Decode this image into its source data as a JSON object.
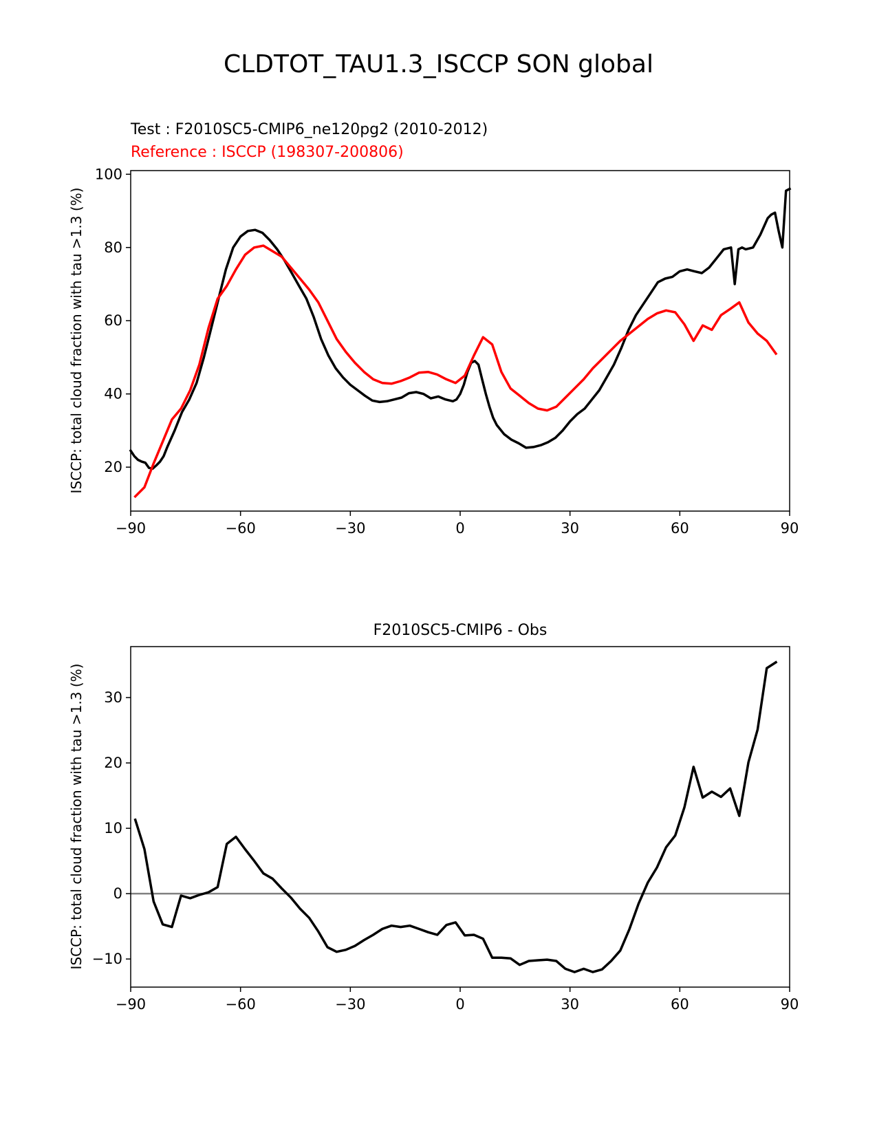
{
  "figure_title": "CLDTOT_TAU1.3_ISCCP SON global",
  "chart_data": [
    {
      "type": "line",
      "test_label": "Test : F2010SC5-CMIP6_ne120pg2 (2010-2012)",
      "reference_label": "Reference : ISCCP (198307-200806)",
      "ylabel": "ISCCP: total cloud fraction with tau >1.3 (%)",
      "xlim": [
        -90,
        90
      ],
      "ylim": [
        8,
        101
      ],
      "xticks": [
        -90,
        -60,
        -30,
        0,
        30,
        60,
        90
      ],
      "xtick_labels": [
        "−90",
        "−60",
        "−30",
        "0",
        "30",
        "60",
        "90"
      ],
      "yticks": [
        20,
        40,
        60,
        80,
        100
      ],
      "ytick_labels": [
        "20",
        "40",
        "60",
        "80",
        "100"
      ],
      "series": [
        {
          "name": "Test",
          "color": "#000000",
          "x": [
            -90,
            -89,
            -88,
            -87,
            -86,
            -85,
            -84,
            -83,
            -82,
            -81,
            -80,
            -78,
            -76,
            -74,
            -72,
            -70,
            -68,
            -66,
            -64,
            -62,
            -60,
            -58,
            -56,
            -54,
            -52,
            -50,
            -48,
            -46,
            -44,
            -42,
            -40,
            -38,
            -36,
            -34,
            -32,
            -30,
            -28,
            -26,
            -24,
            -22,
            -20,
            -18,
            -16,
            -14,
            -12,
            -10,
            -8,
            -6,
            -4,
            -2,
            -1,
            0,
            1,
            2,
            3,
            4,
            5,
            6,
            7,
            8,
            9,
            10,
            12,
            14,
            16,
            18,
            20,
            22,
            24,
            26,
            28,
            30,
            32,
            34,
            36,
            38,
            40,
            42,
            44,
            46,
            48,
            50,
            52,
            54,
            56,
            58,
            60,
            62,
            64,
            66,
            68,
            70,
            72,
            74,
            75,
            76,
            77,
            78,
            80,
            82,
            84,
            85,
            86,
            87,
            88,
            89,
            90
          ],
          "values": [
            24.5,
            23.0,
            22.0,
            21.5,
            21.2,
            19.8,
            19.6,
            20.5,
            21.5,
            23.0,
            25.5,
            30.0,
            35.0,
            38.5,
            43.0,
            50.0,
            58.0,
            66.0,
            74.0,
            80.0,
            83.0,
            84.5,
            84.8,
            84.0,
            82.0,
            79.5,
            76.5,
            73.0,
            69.5,
            66.0,
            61.0,
            55.0,
            50.5,
            47.0,
            44.5,
            42.5,
            41.0,
            39.5,
            38.2,
            37.8,
            38.0,
            38.5,
            39.0,
            40.2,
            40.5,
            40.0,
            38.8,
            39.3,
            38.5,
            38.0,
            38.5,
            40.0,
            42.5,
            46.0,
            48.5,
            49.0,
            48.0,
            44.0,
            40.0,
            36.5,
            33.5,
            31.5,
            29.0,
            27.5,
            26.5,
            25.3,
            25.5,
            26.0,
            26.8,
            28.0,
            30.0,
            32.5,
            34.5,
            36.0,
            38.5,
            41.0,
            44.5,
            48.0,
            52.5,
            57.5,
            61.5,
            64.5,
            67.5,
            70.5,
            71.5,
            72.0,
            73.5,
            74.0,
            73.5,
            73.0,
            74.5,
            77.0,
            79.5,
            80.0,
            70.0,
            79.5,
            80.0,
            79.5,
            80.0,
            83.5,
            88.0,
            89.0,
            89.5,
            84.5,
            80.0,
            95.5,
            96.0
          ]
        },
        {
          "name": "Reference",
          "color": "#ff0000",
          "x": [
            -88.75,
            -86.25,
            -83.75,
            -81.25,
            -78.75,
            -76.25,
            -73.75,
            -71.25,
            -68.75,
            -66.25,
            -63.75,
            -61.25,
            -58.75,
            -56.25,
            -53.75,
            -51.25,
            -48.75,
            -46.25,
            -43.75,
            -41.25,
            -38.75,
            -36.25,
            -33.75,
            -31.25,
            -28.75,
            -26.25,
            -23.75,
            -21.25,
            -18.75,
            -16.25,
            -13.75,
            -11.25,
            -8.75,
            -6.25,
            -3.75,
            -1.25,
            1.25,
            3.75,
            6.25,
            8.75,
            11.25,
            13.75,
            16.25,
            18.75,
            21.25,
            23.75,
            26.25,
            28.75,
            31.25,
            33.75,
            36.25,
            38.75,
            41.25,
            43.75,
            46.25,
            48.75,
            51.25,
            53.75,
            56.25,
            58.75,
            61.25,
            63.75,
            66.25,
            68.75,
            71.25,
            73.75,
            76.25,
            78.75,
            81.25,
            83.75,
            86.25
          ],
          "values": [
            12.0,
            14.5,
            21.0,
            27.0,
            33.0,
            36.0,
            41.0,
            48.0,
            58.0,
            66.0,
            69.5,
            74.0,
            78.0,
            80.0,
            80.5,
            79.0,
            77.5,
            74.5,
            71.5,
            68.5,
            65.0,
            60.0,
            55.0,
            51.5,
            48.5,
            46.0,
            44.0,
            43.0,
            42.8,
            43.5,
            44.5,
            45.8,
            46.0,
            45.3,
            44.0,
            43.0,
            45.0,
            50.5,
            55.5,
            53.5,
            46.0,
            41.5,
            39.5,
            37.5,
            36.0,
            35.5,
            36.5,
            39.0,
            41.5,
            44.0,
            47.0,
            49.5,
            52.0,
            54.5,
            56.5,
            58.5,
            60.5,
            62.0,
            62.8,
            62.3,
            59.0,
            54.5,
            58.7,
            57.5,
            61.5,
            63.2,
            65.0,
            59.5,
            56.5,
            54.5,
            51.0
          ]
        }
      ]
    },
    {
      "type": "line",
      "title": "F2010SC5-CMIP6 - Obs",
      "ylabel": "ISCCP: total cloud fraction with tau >1.3 (%)",
      "xlim": [
        -90,
        90
      ],
      "ylim": [
        -14.3,
        37.8
      ],
      "xticks": [
        -90,
        -60,
        -30,
        0,
        30,
        60,
        90
      ],
      "xtick_labels": [
        "−90",
        "−60",
        "−30",
        "0",
        "30",
        "60",
        "90"
      ],
      "yticks": [
        -10,
        0,
        10,
        20,
        30
      ],
      "ytick_labels": [
        "−10",
        "0",
        "10",
        "20",
        "30"
      ],
      "zero_line_color": "#808080",
      "series": [
        {
          "name": "Difference",
          "color": "#000000",
          "x": [
            -88.75,
            -86.25,
            -83.75,
            -81.25,
            -78.75,
            -76.25,
            -73.75,
            -71.25,
            -68.75,
            -66.25,
            -63.75,
            -61.25,
            -58.75,
            -56.25,
            -53.75,
            -51.25,
            -48.75,
            -46.25,
            -43.75,
            -41.25,
            -38.75,
            -36.25,
            -33.75,
            -31.25,
            -28.75,
            -26.25,
            -23.75,
            -21.25,
            -18.75,
            -16.25,
            -13.75,
            -11.25,
            -8.75,
            -6.25,
            -3.75,
            -1.25,
            1.25,
            3.75,
            6.25,
            8.75,
            11.25,
            13.75,
            16.25,
            18.75,
            21.25,
            23.75,
            26.25,
            28.75,
            31.25,
            33.75,
            36.25,
            38.75,
            41.25,
            43.75,
            46.25,
            48.75,
            51.25,
            53.75,
            56.25,
            58.75,
            61.25,
            63.75,
            66.25,
            68.75,
            71.25,
            73.75,
            76.25,
            78.75,
            81.25,
            83.75,
            86.25
          ],
          "values": [
            11.3,
            6.8,
            -1.2,
            -4.7,
            -5.1,
            -0.3,
            -0.7,
            -0.2,
            0.2,
            1.0,
            7.6,
            8.7,
            6.8,
            5.0,
            3.1,
            2.3,
            0.8,
            -0.6,
            -2.3,
            -3.7,
            -5.8,
            -8.2,
            -8.9,
            -8.6,
            -8.0,
            -7.1,
            -6.3,
            -5.4,
            -4.9,
            -5.1,
            -4.9,
            -5.4,
            -5.9,
            -6.3,
            -4.8,
            -4.4,
            -6.4,
            -6.3,
            -6.9,
            -9.8,
            -9.8,
            -9.9,
            -10.9,
            -10.3,
            -10.2,
            -10.1,
            -10.3,
            -11.5,
            -12.0,
            -11.5,
            -12.0,
            -11.6,
            -10.3,
            -8.7,
            -5.4,
            -1.5,
            1.7,
            4.0,
            7.1,
            8.9,
            13.2,
            19.4,
            14.7,
            15.6,
            14.8,
            16.1,
            11.9,
            20.1,
            25.1,
            34.5,
            35.4
          ]
        }
      ]
    }
  ]
}
